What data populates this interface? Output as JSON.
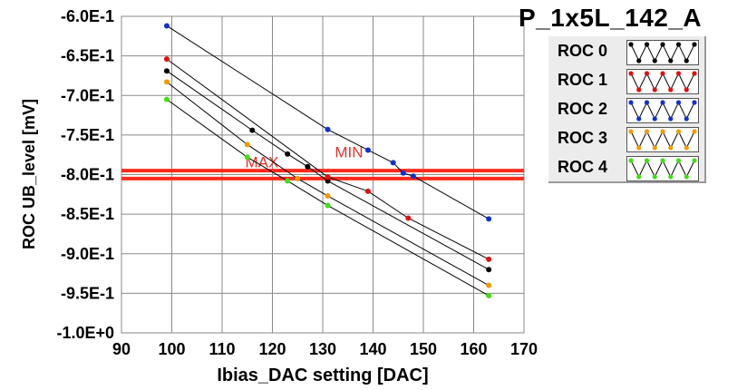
{
  "title": "P_1x5L_142_A",
  "chart_data": {
    "type": "line",
    "title": "P_1x5L_142_A",
    "xlabel": "Ibias_DAC setting [DAC]",
    "ylabel": "ROC UB_level [mV]",
    "xlim": [
      90,
      170
    ],
    "ylim": [
      -1.0,
      -0.6
    ],
    "x_ticks": [
      "90",
      "100",
      "110",
      "120",
      "130",
      "140",
      "150",
      "160",
      "170"
    ],
    "y_ticks": [
      "-6.0E-1",
      "-6.5E-1",
      "-7.0E-1",
      "-7.5E-1",
      "-8.0E-1",
      "-8.5E-1",
      "-9.0E-1",
      "-9.5E-1",
      "-1.0E+0"
    ],
    "grid": true,
    "legend_position": "right",
    "threshold_lines": [
      {
        "label": "MAX",
        "y": -0.795,
        "color": "#ff2a1a"
      },
      {
        "label": "MIN",
        "y": -0.805,
        "color": "#ff2a1a"
      }
    ],
    "series": [
      {
        "name": "ROC 0",
        "color": "#000000",
        "points": [
          [
            99,
            -0.669
          ],
          [
            116,
            -0.744
          ],
          [
            123,
            -0.774
          ],
          [
            127,
            -0.79
          ],
          [
            131,
            -0.808
          ],
          [
            163,
            -0.92
          ]
        ]
      },
      {
        "name": "ROC 1",
        "color": "#e01010",
        "points": [
          [
            99,
            -0.654
          ],
          [
            131,
            -0.803
          ],
          [
            139,
            -0.821
          ],
          [
            147,
            -0.855
          ],
          [
            163,
            -0.907
          ]
        ]
      },
      {
        "name": "ROC 2",
        "color": "#1030d0",
        "points": [
          [
            99,
            -0.612
          ],
          [
            131,
            -0.743
          ],
          [
            139,
            -0.769
          ],
          [
            144,
            -0.785
          ],
          [
            146,
            -0.798
          ],
          [
            148,
            -0.802
          ],
          [
            163,
            -0.856
          ]
        ]
      },
      {
        "name": "ROC 3",
        "color": "#f39a00",
        "points": [
          [
            99,
            -0.683
          ],
          [
            115,
            -0.762
          ],
          [
            125,
            -0.805
          ],
          [
            131,
            -0.827
          ],
          [
            163,
            -0.94
          ]
        ]
      },
      {
        "name": "ROC 4",
        "color": "#40e010",
        "points": [
          [
            99,
            -0.705
          ],
          [
            115,
            -0.778
          ],
          [
            123,
            -0.808
          ],
          [
            131,
            -0.839
          ],
          [
            163,
            -0.953
          ]
        ]
      }
    ]
  }
}
